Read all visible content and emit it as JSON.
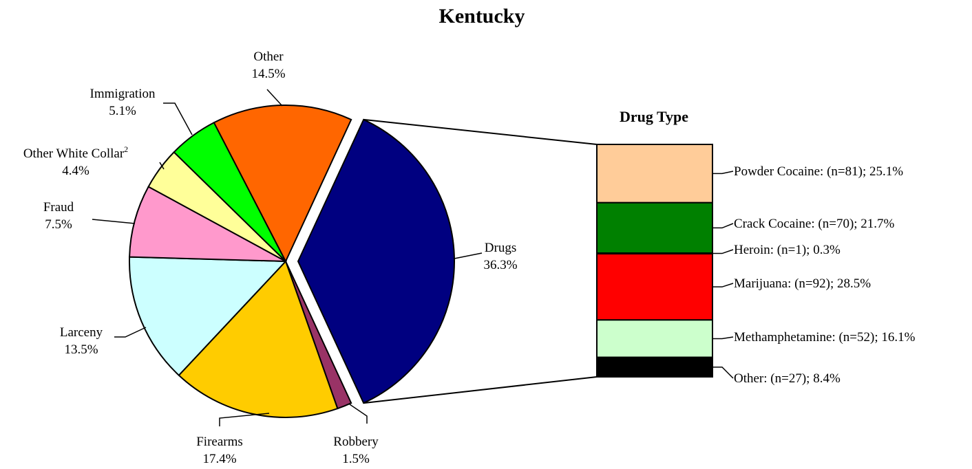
{
  "chart_data": [
    {
      "type": "pie",
      "title": "Kentucky",
      "slices": [
        {
          "label": "Drugs",
          "value": 36.3,
          "value_label": "36.3%",
          "color": "#000080",
          "exploded": true
        },
        {
          "label": "Robbery",
          "value": 1.5,
          "value_label": "1.5%",
          "color": "#993366"
        },
        {
          "label": "Firearms",
          "value": 17.4,
          "value_label": "17.4%",
          "color": "#ffcc00"
        },
        {
          "label": "Larceny",
          "value": 13.5,
          "value_label": "13.5%",
          "color": "#ccffff"
        },
        {
          "label": "Fraud",
          "value": 7.5,
          "value_label": "7.5%",
          "color": "#ff99cc"
        },
        {
          "label": "Other White Collar",
          "superscript": "2",
          "value": 4.4,
          "value_label": "4.4%",
          "color": "#ffff99"
        },
        {
          "label": "Immigration",
          "value": 5.1,
          "value_label": "5.1%",
          "color": "#00ff00"
        },
        {
          "label": "Other",
          "value": 14.5,
          "value_label": "14.5%",
          "color": "#ff6600"
        }
      ]
    },
    {
      "type": "bar",
      "stacked": true,
      "title": "Drug Type",
      "segments": [
        {
          "label": "Powder Cocaine: (n=81); 25.1%",
          "n": 81,
          "value": 25.1,
          "color": "#ffcc99"
        },
        {
          "label": "Crack Cocaine: (n=70); 21.7%",
          "n": 70,
          "value": 21.7,
          "color": "#008000"
        },
        {
          "label": "Heroin: (n=1); 0.3%",
          "n": 1,
          "value": 0.3,
          "color": "#0000ff"
        },
        {
          "label": "Marijuana: (n=92); 28.5%",
          "n": 92,
          "value": 28.5,
          "color": "#ff0000"
        },
        {
          "label": "Methamphetamine: (n=52); 16.1%",
          "n": 52,
          "value": 16.1,
          "color": "#ccffcc"
        },
        {
          "label": "Other: (n=27); 8.4%",
          "n": 27,
          "value": 8.4,
          "color": "#000000"
        }
      ]
    }
  ]
}
